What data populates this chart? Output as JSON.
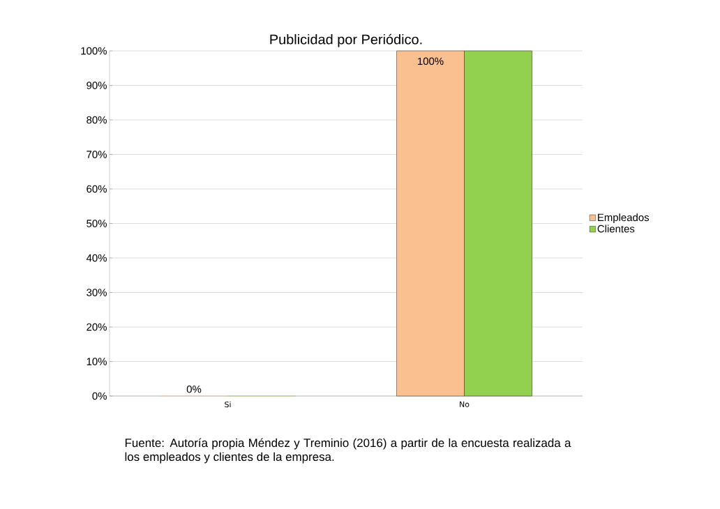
{
  "chart_data": {
    "type": "bar",
    "title": "Publicidad por  Periódico.",
    "categories": [
      "Si",
      "No"
    ],
    "series": [
      {
        "name": "Empleados",
        "color": "#fac090",
        "values": [
          0,
          100
        ],
        "value_labels": [
          "0%",
          "100%"
        ]
      },
      {
        "name": "Clientes",
        "color": "#92d050",
        "values": [
          0,
          100
        ]
      }
    ],
    "ylim": [
      0,
      100
    ],
    "yticks": [
      {
        "value": 0,
        "label": "0%"
      },
      {
        "value": 10,
        "label": "10%"
      },
      {
        "value": 20,
        "label": "20%"
      },
      {
        "value": 30,
        "label": "30%"
      },
      {
        "value": 40,
        "label": "40%"
      },
      {
        "value": 50,
        "label": "50%"
      },
      {
        "value": 60,
        "label": "60%"
      },
      {
        "value": 70,
        "label": "70%"
      },
      {
        "value": 80,
        "label": "80%"
      },
      {
        "value": 90,
        "label": "90%"
      },
      {
        "value": 100,
        "label": "100%"
      }
    ],
    "grid": "y",
    "legend": "right",
    "annotations": [
      "Fuente: Autoría propia Méndez y Treminio (2016) a partir de la encuesta realizada a los empleados y clientes de la empresa."
    ]
  }
}
